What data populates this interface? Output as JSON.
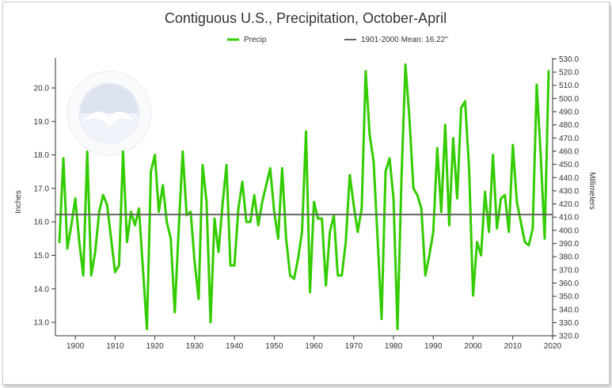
{
  "chart_data": {
    "type": "line",
    "title": "Contiguous U.S., Precipitation, October-April",
    "ylabel": "Inches",
    "y2label": "Millimeters",
    "xlim": [
      1895,
      2020
    ],
    "ylim": [
      12.6,
      20.9
    ],
    "xticks": [
      1900,
      1910,
      1920,
      1930,
      1940,
      1950,
      1960,
      1970,
      1980,
      1990,
      2000,
      2010,
      2020
    ],
    "yticks": [
      13.0,
      14.0,
      15.0,
      16.0,
      17.0,
      18.0,
      19.0,
      20.0
    ],
    "y2ticks": [
      320.0,
      330.0,
      340.0,
      350.0,
      360.0,
      370.0,
      380.0,
      390.0,
      400.0,
      410.0,
      420.0,
      430.0,
      440.0,
      450.0,
      460.0,
      470.0,
      480.0,
      490.0,
      500.0,
      510.0,
      520.0,
      530.0
    ],
    "mm_per_inch": 25.4,
    "grid": false,
    "legend_position": "top",
    "series": [
      {
        "name": "Precip",
        "color": "#33cc00",
        "x": [
          1896,
          1897,
          1898,
          1899,
          1900,
          1901,
          1902,
          1903,
          1904,
          1905,
          1906,
          1907,
          1908,
          1909,
          1910,
          1911,
          1912,
          1913,
          1914,
          1915,
          1916,
          1917,
          1918,
          1919,
          1920,
          1921,
          1922,
          1923,
          1924,
          1925,
          1926,
          1927,
          1928,
          1929,
          1930,
          1931,
          1932,
          1933,
          1934,
          1935,
          1936,
          1937,
          1938,
          1939,
          1940,
          1941,
          1942,
          1943,
          1944,
          1945,
          1946,
          1947,
          1948,
          1949,
          1950,
          1951,
          1952,
          1953,
          1954,
          1955,
          1956,
          1957,
          1958,
          1959,
          1960,
          1961,
          1962,
          1963,
          1964,
          1965,
          1966,
          1967,
          1968,
          1969,
          1970,
          1971,
          1972,
          1973,
          1974,
          1975,
          1976,
          1977,
          1978,
          1979,
          1980,
          1981,
          1982,
          1983,
          1984,
          1985,
          1986,
          1987,
          1988,
          1989,
          1990,
          1991,
          1992,
          1993,
          1994,
          1995,
          1996,
          1997,
          1998,
          1999,
          2000,
          2001,
          2002,
          2003,
          2004,
          2005,
          2006,
          2007,
          2008,
          2009,
          2010,
          2011,
          2012,
          2013,
          2014,
          2015,
          2016,
          2017,
          2018,
          2019
        ],
        "values": [
          15.4,
          17.9,
          15.2,
          15.9,
          16.7,
          15.4,
          14.4,
          18.1,
          14.4,
          15.1,
          16.3,
          16.8,
          16.5,
          15.5,
          14.5,
          14.7,
          18.1,
          15.4,
          16.3,
          15.9,
          16.4,
          14.6,
          12.8,
          17.5,
          18.0,
          16.3,
          17.1,
          16.0,
          15.5,
          13.3,
          15.8,
          18.1,
          16.2,
          16.3,
          14.8,
          13.7,
          17.7,
          16.6,
          13.0,
          16.1,
          15.1,
          16.5,
          17.7,
          14.7,
          14.7,
          16.4,
          17.2,
          16.0,
          16.0,
          16.8,
          15.9,
          16.6,
          17.1,
          17.6,
          16.3,
          15.5,
          17.6,
          15.5,
          14.4,
          14.3,
          14.9,
          15.7,
          18.7,
          13.9,
          16.6,
          16.1,
          16.1,
          14.1,
          15.7,
          16.2,
          14.4,
          14.4,
          15.4,
          17.4,
          16.5,
          15.7,
          16.4,
          20.5,
          18.6,
          17.8,
          15.5,
          13.1,
          17.5,
          17.9,
          16.7,
          12.8,
          17.3,
          20.7,
          19.1,
          17.0,
          16.8,
          16.4,
          14.4,
          15.0,
          15.7,
          18.2,
          16.3,
          18.9,
          15.9,
          18.5,
          16.7,
          19.4,
          19.6,
          17.6,
          13.8,
          15.4,
          15.0,
          16.9,
          15.7,
          18.0,
          15.8,
          16.7,
          16.8,
          15.7,
          18.3,
          16.6,
          16.0,
          15.4,
          15.3,
          15.8,
          20.1,
          18.0,
          15.5,
          20.5
        ]
      },
      {
        "name": "1901-2000 Mean: 16.22\"",
        "color": "#666666",
        "mean": 16.22
      }
    ]
  }
}
